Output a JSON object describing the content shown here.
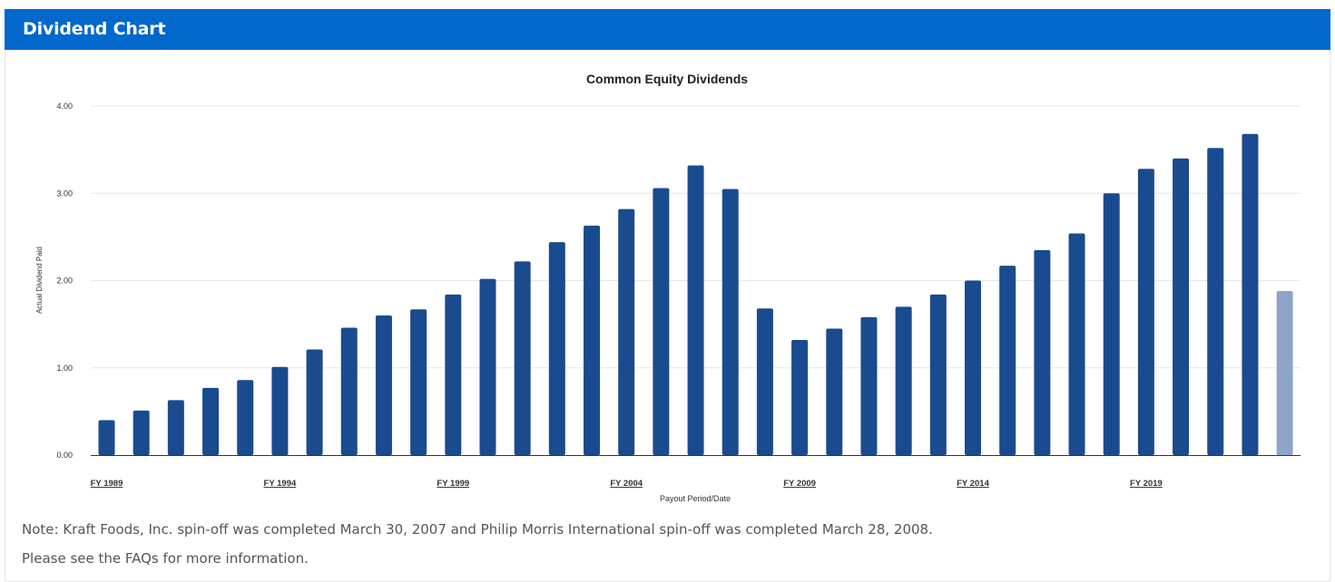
{
  "header": {
    "title": "Dividend Chart"
  },
  "colors": {
    "header_bg": "#0268cc",
    "bar": "#1a4b8f",
    "bar_estimate": "#8ea5c8",
    "grid": "#e6e6e6",
    "axis": "#333333"
  },
  "chart_data": {
    "type": "bar",
    "title": "Common Equity Dividends",
    "xlabel": "Payout Period/Date",
    "ylabel": "Actual Dividend Paid",
    "ylim": [
      0,
      4
    ],
    "yticks": [
      "0.00",
      "1.00",
      "2.00",
      "3.00",
      "4.00"
    ],
    "grid": true,
    "x_tick_labels": [
      {
        "index": 0,
        "label": "FY 1989"
      },
      {
        "index": 5,
        "label": "FY 1994"
      },
      {
        "index": 10,
        "label": "FY 1999"
      },
      {
        "index": 15,
        "label": "FY 2004"
      },
      {
        "index": 20,
        "label": "FY 2009"
      },
      {
        "index": 25,
        "label": "FY 2014"
      },
      {
        "index": 30,
        "label": "FY 2019"
      }
    ],
    "categories": [
      "FY 1989",
      "FY 1990",
      "FY 1991",
      "FY 1992",
      "FY 1993",
      "FY 1994",
      "FY 1995",
      "FY 1996",
      "FY 1997",
      "FY 1998",
      "FY 1999",
      "FY 2000",
      "FY 2001",
      "FY 2002",
      "FY 2003",
      "FY 2004",
      "FY 2005",
      "FY 2006",
      "FY 2007",
      "FY 2008",
      "FY 2009",
      "FY 2010",
      "FY 2011",
      "FY 2012",
      "FY 2013",
      "FY 2014",
      "FY 2015",
      "FY 2016",
      "FY 2017",
      "FY 2018",
      "FY 2019",
      "FY 2020",
      "FY 2021",
      "FY 2022",
      "FY 2023"
    ],
    "values": [
      0.4,
      0.51,
      0.63,
      0.77,
      0.86,
      1.01,
      1.21,
      1.46,
      1.6,
      1.67,
      1.84,
      2.02,
      2.22,
      2.44,
      2.63,
      2.82,
      3.06,
      3.32,
      3.05,
      1.68,
      1.32,
      1.45,
      1.58,
      1.7,
      1.84,
      2.0,
      2.17,
      2.35,
      2.54,
      3.0,
      3.28,
      3.4,
      3.52,
      3.68,
      1.88
    ],
    "estimate_indices": [
      34
    ]
  },
  "notes": {
    "note1": "Note: Kraft Foods, Inc. spin-off was completed March 30, 2007 and Philip Morris International spin-off was completed March 28, 2008.",
    "note2_prefix": "Please see the ",
    "note2_link": "FAQs",
    "note2_suffix": " for more information."
  }
}
